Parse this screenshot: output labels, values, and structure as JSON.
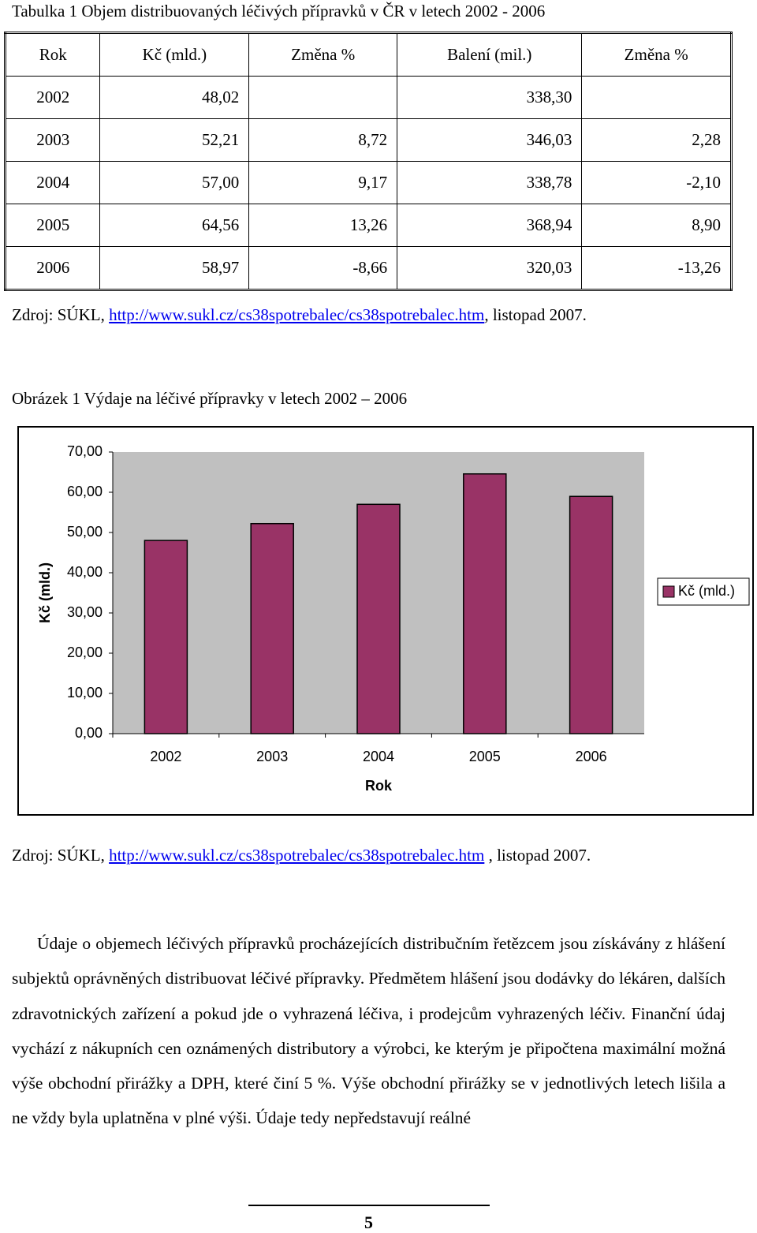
{
  "table_caption": "Tabulka 1 Objem distribuovaných léčivých přípravků v ČR v letech 2002 - 2006",
  "table": {
    "header": [
      "Rok",
      "Kč (mld.)",
      "Změna %",
      "Balení (mil.)",
      "Změna %"
    ],
    "rows": [
      [
        "2002",
        "48,02",
        null,
        "338,30",
        null
      ],
      [
        "2003",
        "52,21",
        "8,72",
        "346,03",
        "2,28"
      ],
      [
        "2004",
        "57,00",
        "9,17",
        "338,78",
        "-2,10"
      ],
      [
        "2005",
        "64,56",
        "13,26",
        "368,94",
        "8,90"
      ],
      [
        "2006",
        "58,97",
        "-8,66",
        "320,03",
        "-13,26"
      ]
    ]
  },
  "table_source": {
    "prefix": "Zdroj: SÚKL,",
    "link": "http://www.sukl.cz/cs38spotrebalec/cs38spotrebalec.htm",
    "suffix": ", listopad 2007."
  },
  "figure_caption": "Obrázek 1 Výdaje na léčivé přípravky v letech 2002 – 2006",
  "chart_data": {
    "type": "bar",
    "categories": [
      "2002",
      "2003",
      "2004",
      "2005",
      "2006"
    ],
    "x_label": "Rok",
    "y_label": "Kč (mld.)",
    "series": [
      {
        "name": "Kč (mld.)",
        "color": "#993366",
        "values": [
          48.02,
          52.21,
          57.0,
          64.56,
          58.97
        ]
      }
    ],
    "ylim": [
      0,
      70
    ],
    "yticks": [
      {
        "value": 0,
        "label": "0,00"
      },
      {
        "value": 10,
        "label": "10,00"
      },
      {
        "value": 20,
        "label": "20,00"
      },
      {
        "value": 30,
        "label": "30,00"
      },
      {
        "value": 40,
        "label": "40,00"
      },
      {
        "value": 50,
        "label": "50,00"
      },
      {
        "value": 60,
        "label": "60,00"
      },
      {
        "value": 70,
        "label": "70,00"
      }
    ],
    "grid": false,
    "legend": "right",
    "plot_background": "#c0c0c0"
  },
  "figure_source": {
    "prefix": "Zdroj: SÚKL,",
    "link": "http://www.sukl.cz/cs38spotrebalec/cs38spotrebalec.htm",
    "suffix": ", listopad 2007."
  },
  "paragraph": "Údaje o objemech léčivých přípravků procházejících distribučním řetězcem jsou získávány z hlášení subjektů oprávněných distribuovat léčivé přípravky. Předmětem hlášení jsou dodávky do lékáren, dalších zdravotnických zařízení a pokud jde o vyhrazená léčiva, i prodejcům vyhrazených léčiv. Finanční údaj vychází z nákupních cen oznámených distributory a výrobci, ke kterým je připočtena maximální možná výše obchodní přirážky a DPH, které činí 5 %. Výše obchodní přirážky se v jednotlivých letech lišila a ne vždy byla uplatněna v plné výši. Údaje tedy nepředstavují reálné",
  "footer": {
    "page_number": "5"
  }
}
